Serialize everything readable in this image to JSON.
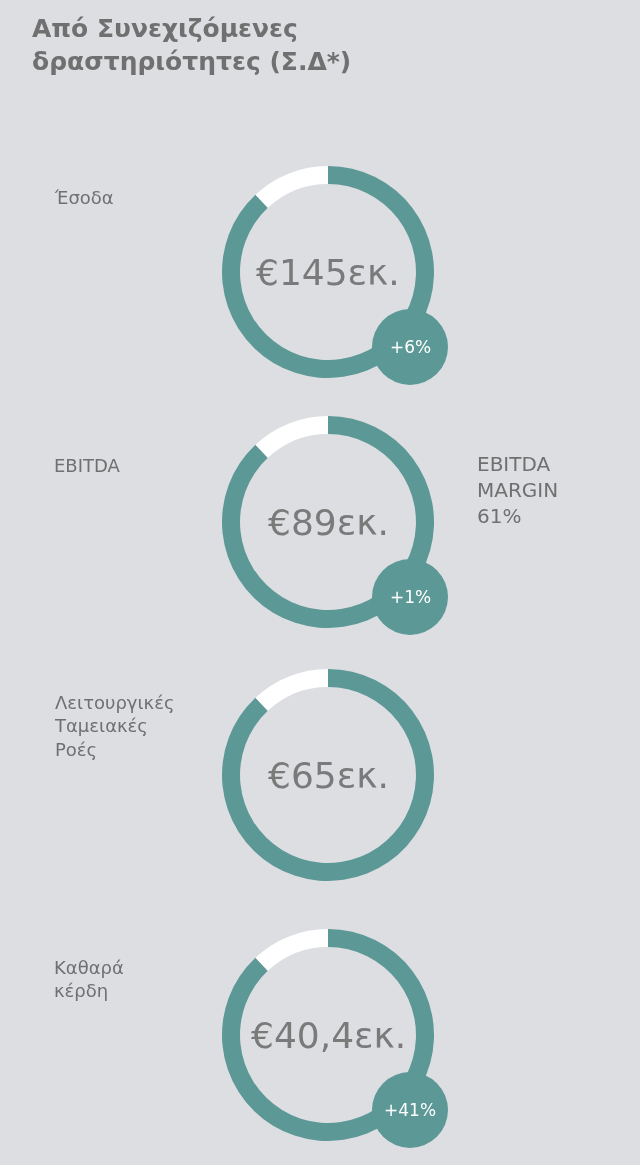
{
  "chart_data": [
    {
      "type": "donut",
      "title": "Από Συνεχιζόμενες\nδραστηριότητες (Σ.Δ*)",
      "ylabel": "Έσοδα",
      "categories": [
        null,
        null
      ],
      "values": [
        88,
        12
      ],
      "colors": [
        "#5b9896",
        "#ffffff"
      ],
      "annotations": [
        "€145εκ.",
        "+6%"
      ]
    },
    {
      "type": "donut",
      "ylabel": "EBITDA",
      "categories": [
        null,
        null
      ],
      "values": [
        88,
        12
      ],
      "colors": [
        "#5b9896",
        "#ffffff"
      ],
      "annotations": [
        "€89εκ.",
        "+1%",
        "EBITDA\nMARGIN\n61%"
      ]
    },
    {
      "type": "donut",
      "ylabel": "Λειτουργικές\nΤαμειακές\nΡοές",
      "categories": [
        null,
        null
      ],
      "values": [
        88,
        12
      ],
      "colors": [
        "#5b9896",
        "#ffffff"
      ],
      "annotations": [
        "€65εκ."
      ]
    },
    {
      "type": "donut",
      "ylabel": "Καθαρά\nκέρδη",
      "categories": [
        null,
        null
      ],
      "values": [
        88,
        12
      ],
      "colors": [
        "#5b9896",
        "#ffffff"
      ],
      "annotations": [
        "€40,4εκ.",
        "+41%"
      ]
    }
  ]
}
